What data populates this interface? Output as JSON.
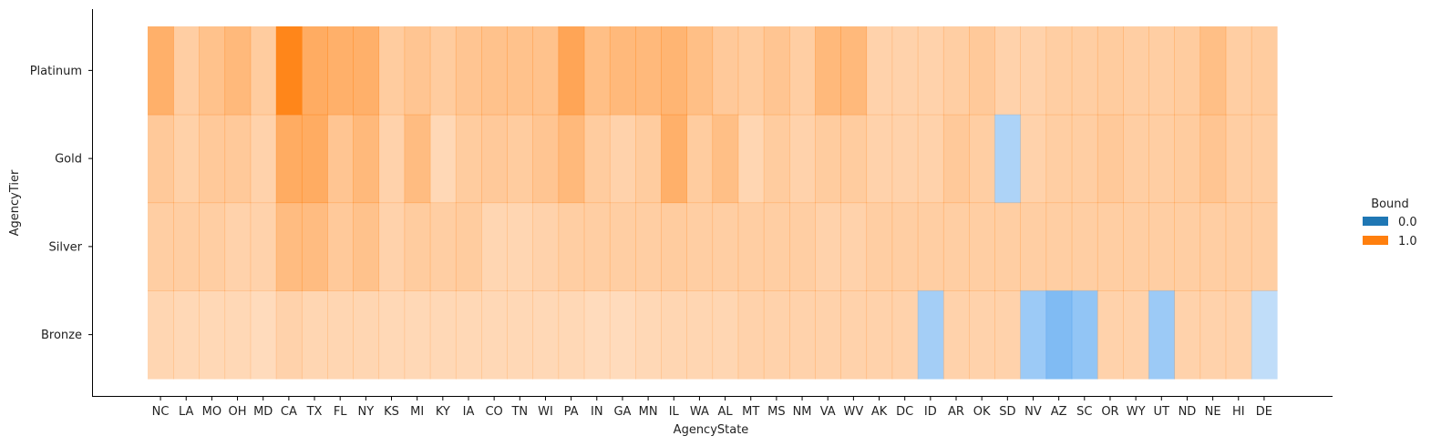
{
  "chart_data": {
    "type": "heatmap",
    "xlabel": "AgencyState",
    "ylabel": "AgencyTier",
    "x": [
      "NC",
      "LA",
      "MO",
      "OH",
      "MD",
      "CA",
      "TX",
      "FL",
      "NY",
      "KS",
      "MI",
      "KY",
      "IA",
      "CO",
      "TN",
      "WI",
      "PA",
      "IN",
      "GA",
      "MN",
      "IL",
      "WA",
      "AL",
      "MT",
      "MS",
      "NM",
      "VA",
      "WV",
      "AK",
      "DC",
      "ID",
      "AR",
      "OK",
      "SD",
      "NV",
      "AZ",
      "SC",
      "OR",
      "WY",
      "UT",
      "ND",
      "NE",
      "HI",
      "DE"
    ],
    "y": [
      "Platinum",
      "Gold",
      "Silver",
      "Bronze"
    ],
    "cells": [
      [
        "1.0",
        "1.0",
        "1.0",
        "1.0",
        "1.0",
        "1.0",
        "1.0",
        "1.0",
        "1.0",
        "1.0",
        "1.0",
        "1.0",
        "1.0",
        "1.0",
        "1.0",
        "1.0",
        "1.0",
        "1.0",
        "1.0",
        "1.0",
        "1.0",
        "1.0",
        "1.0",
        "1.0",
        "1.0",
        "1.0",
        "1.0",
        "1.0",
        "1.0",
        "1.0",
        "1.0",
        "1.0",
        "1.0",
        "1.0",
        "1.0",
        "1.0",
        "1.0",
        "1.0",
        "1.0",
        "1.0",
        "1.0",
        "1.0",
        "1.0",
        "1.0"
      ],
      [
        "1.0",
        "1.0",
        "1.0",
        "1.0",
        "1.0",
        "1.0",
        "1.0",
        "1.0",
        "1.0",
        "1.0",
        "1.0",
        "1.0",
        "1.0",
        "1.0",
        "1.0",
        "1.0",
        "1.0",
        "1.0",
        "1.0",
        "1.0",
        "1.0",
        "1.0",
        "1.0",
        "1.0",
        "1.0",
        "1.0",
        "1.0",
        "1.0",
        "1.0",
        "1.0",
        "1.0",
        "1.0",
        "1.0",
        "0.0",
        "1.0",
        "1.0",
        "1.0",
        "1.0",
        "1.0",
        "1.0",
        "1.0",
        "1.0",
        "1.0",
        "1.0"
      ],
      [
        "1.0",
        "1.0",
        "1.0",
        "1.0",
        "1.0",
        "1.0",
        "1.0",
        "1.0",
        "1.0",
        "1.0",
        "1.0",
        "1.0",
        "1.0",
        "1.0",
        "1.0",
        "1.0",
        "1.0",
        "1.0",
        "1.0",
        "1.0",
        "1.0",
        "1.0",
        "1.0",
        "1.0",
        "1.0",
        "1.0",
        "1.0",
        "1.0",
        "1.0",
        "1.0",
        "1.0",
        "1.0",
        "1.0",
        "1.0",
        "1.0",
        "1.0",
        "1.0",
        "1.0",
        "1.0",
        "1.0",
        "1.0",
        "1.0",
        "1.0",
        "1.0"
      ],
      [
        "1.0",
        "1.0",
        "1.0",
        "1.0",
        "1.0",
        "1.0",
        "1.0",
        "1.0",
        "1.0",
        "1.0",
        "1.0",
        "1.0",
        "1.0",
        "1.0",
        "1.0",
        "1.0",
        "1.0",
        "1.0",
        "1.0",
        "1.0",
        "1.0",
        "1.0",
        "1.0",
        "1.0",
        "1.0",
        "1.0",
        "1.0",
        "1.0",
        "1.0",
        "1.0",
        "0.0",
        "1.0",
        "1.0",
        "1.0",
        "0.0",
        "0.0",
        "0.0",
        "1.0",
        "1.0",
        "0.0",
        "1.0",
        "1.0",
        "1.0",
        "0.0"
      ]
    ],
    "intensity": [
      [
        0.62,
        0.38,
        0.48,
        0.55,
        0.4,
        0.95,
        0.65,
        0.62,
        0.62,
        0.4,
        0.45,
        0.4,
        0.45,
        0.48,
        0.48,
        0.48,
        0.7,
        0.5,
        0.55,
        0.55,
        0.58,
        0.5,
        0.42,
        0.4,
        0.45,
        0.38,
        0.55,
        0.55,
        0.35,
        0.35,
        0.35,
        0.38,
        0.42,
        0.35,
        0.35,
        0.38,
        0.38,
        0.4,
        0.38,
        0.38,
        0.4,
        0.5,
        0.38,
        0.4
      ],
      [
        0.42,
        0.36,
        0.42,
        0.42,
        0.35,
        0.65,
        0.65,
        0.45,
        0.55,
        0.35,
        0.52,
        0.3,
        0.4,
        0.42,
        0.4,
        0.45,
        0.55,
        0.4,
        0.35,
        0.4,
        0.62,
        0.4,
        0.5,
        0.32,
        0.4,
        0.35,
        0.4,
        0.4,
        0.35,
        0.35,
        0.35,
        0.42,
        0.38,
        0.45,
        0.35,
        0.38,
        0.38,
        0.42,
        0.38,
        0.38,
        0.4,
        0.45,
        0.38,
        0.38
      ],
      [
        0.38,
        0.38,
        0.38,
        0.35,
        0.35,
        0.52,
        0.52,
        0.42,
        0.48,
        0.35,
        0.4,
        0.38,
        0.4,
        0.32,
        0.32,
        0.35,
        0.38,
        0.38,
        0.38,
        0.38,
        0.4,
        0.38,
        0.38,
        0.38,
        0.38,
        0.38,
        0.35,
        0.35,
        0.38,
        0.38,
        0.38,
        0.38,
        0.38,
        0.38,
        0.38,
        0.38,
        0.38,
        0.38,
        0.38,
        0.38,
        0.38,
        0.38,
        0.38,
        0.38
      ],
      [
        0.32,
        0.3,
        0.3,
        0.3,
        0.28,
        0.35,
        0.32,
        0.32,
        0.32,
        0.3,
        0.3,
        0.3,
        0.3,
        0.3,
        0.3,
        0.3,
        0.3,
        0.28,
        0.28,
        0.3,
        0.32,
        0.32,
        0.32,
        0.35,
        0.35,
        0.35,
        0.35,
        0.35,
        0.35,
        0.35,
        0.5,
        0.35,
        0.35,
        0.35,
        0.55,
        0.7,
        0.6,
        0.35,
        0.35,
        0.55,
        0.35,
        0.35,
        0.35,
        0.35
      ]
    ],
    "legend": {
      "title": "Bound",
      "position": "right",
      "entries": [
        {
          "label": "0.0",
          "color": "#1f77b4"
        },
        {
          "label": "1.0",
          "color": "#ff7f0e"
        }
      ]
    },
    "colors": {
      "0.0": "#4a9eee",
      "1.0": "#ff7f0e",
      "0.0_swatch": "#1f77b4",
      "1.0_swatch": "#ff7f0e"
    },
    "grid": false
  }
}
